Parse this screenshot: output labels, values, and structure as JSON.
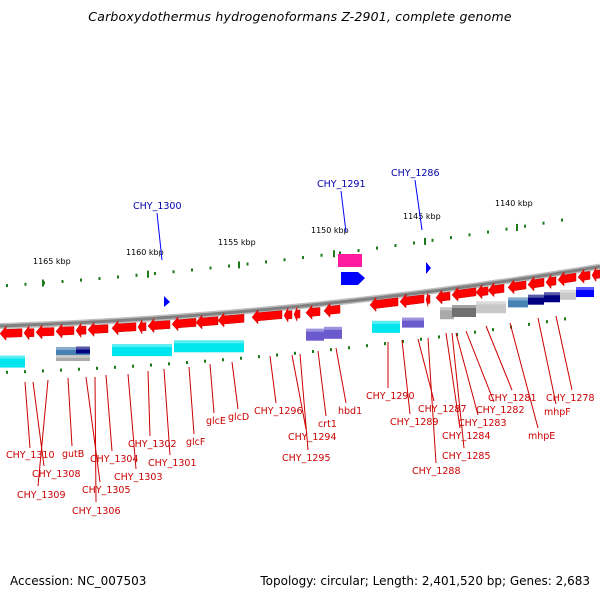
{
  "title": "Carboxydothermus hydrogenoformans Z-2901, complete genome",
  "accession": "Accession: NC_007503",
  "topology": "Topology: circular; Length: 2,401,520 bp; Genes: 2,683",
  "scale_labels": [
    "1165 kbp",
    "1160 kbp",
    "1155 kbp",
    "1150 kbp",
    "1145 kbp",
    "1140 kbp"
  ],
  "upper_labels": [
    "CHY_1300",
    "CHY_1291",
    "CHY_1286"
  ],
  "gene_labels": [
    "CHY_1310",
    "CHY_1308",
    "CHY_1309",
    "gutB",
    "CHY_1305",
    "CHY_1306",
    "CHY_1304",
    "CHY_1303",
    "CHY_1302",
    "CHY_1301",
    "glcF",
    "glcE",
    "glcD",
    "CHY_1296",
    "CHY_1294",
    "CHY_1295",
    "crt1",
    "hbd1",
    "CHY_1290",
    "CHY_1289",
    "CHY_1287",
    "CHY_1288",
    "CHY_1284",
    "CHY_1285",
    "CHY_1283",
    "CHY_1282",
    "CHY_1281",
    "mhpE",
    "mhpF",
    "CHY_1278"
  ],
  "colors": {
    "gene_forward": "#ff0000",
    "gene_label": "#cc0000",
    "upper_label": "#0000aa",
    "scale_tick": "#1a7a1a",
    "backbone": "#808080",
    "cyan_track": "#00e5ee",
    "magenta": "#ff1aa0",
    "blue": "#0000ff",
    "navy": "#000080",
    "purple": "#6a5acd",
    "steelblue": "#4682b4",
    "grey": "#a9a9a9"
  }
}
